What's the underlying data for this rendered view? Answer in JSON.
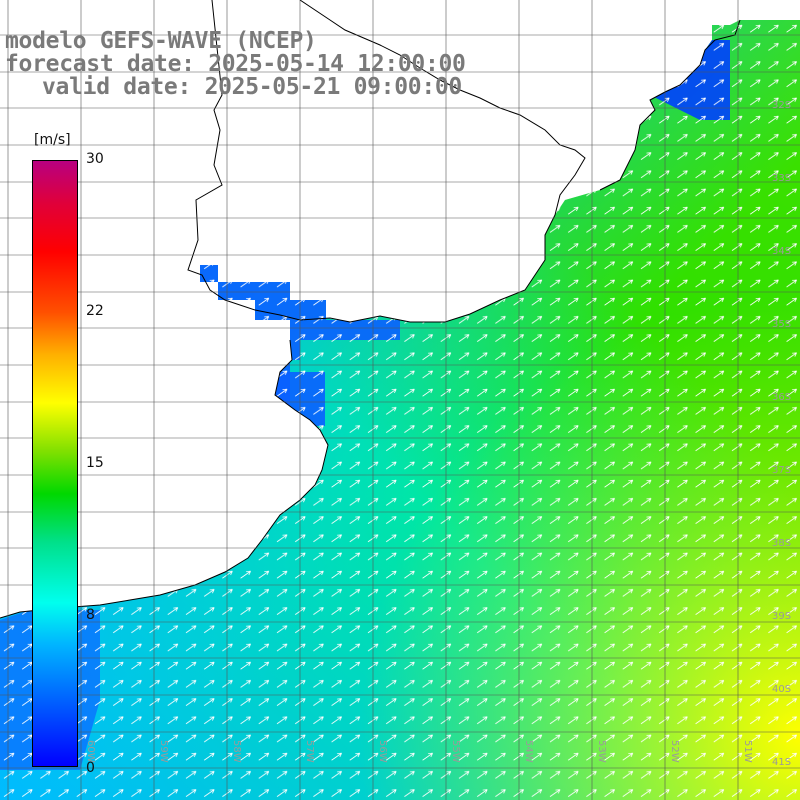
{
  "titles": {
    "line1": "modelo GEFS-WAVE (NCEP)",
    "line2": "forecast date: 2025-05-14 12:00:00",
    "line3": "valid date: 2025-05-21 09:00:00"
  },
  "colorbar": {
    "unit": "[m/s]",
    "ticks": [
      "30",
      "22",
      "15",
      "8",
      "0"
    ],
    "colors": [
      "#0000ff",
      "#00b4ff",
      "#00ffee",
      "#00d800",
      "#ffff00",
      "#ff5000",
      "#ff0000",
      "#b80080"
    ]
  },
  "grid": {
    "lat_labels": [
      "32S",
      "33S",
      "34S",
      "35S",
      "36S",
      "37S",
      "38S",
      "39S",
      "40S",
      "41S"
    ],
    "lon_labels": [
      "60W",
      "59W",
      "58W",
      "57W",
      "56W",
      "55W",
      "54W",
      "53W",
      "52W",
      "51W"
    ]
  },
  "wind_arrow_direction": "northeast"
}
